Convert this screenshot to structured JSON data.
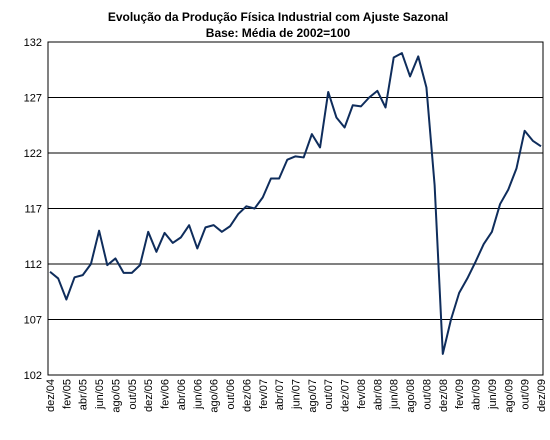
{
  "chart_data": {
    "type": "line",
    "title": "Evolução da Produção Física Industrial com Ajuste Sazonal",
    "subtitle": "Base: Média de 2002=100",
    "categories": [
      "dez/04",
      null,
      "fev/05",
      null,
      "abr/05",
      null,
      "jun/05",
      null,
      "ago/05",
      null,
      "out/05",
      null,
      "dez/05",
      null,
      "fev/06",
      null,
      "abr/06",
      null,
      "jun/06",
      null,
      "ago/06",
      null,
      "out/06",
      null,
      "dez/06",
      null,
      "fev/07",
      null,
      "abr/07",
      null,
      "jun/07",
      null,
      "ago/07",
      null,
      "out/07",
      null,
      "dez/07",
      null,
      "fev/08",
      null,
      "abr/08",
      null,
      "jun/08",
      null,
      "ago/08",
      null,
      "out/08",
      null,
      "dez/08",
      null,
      "fev/09",
      null,
      "abr/09",
      null,
      "jun/09",
      null,
      "ago/09",
      null,
      "out/09",
      null,
      "dez/09"
    ],
    "values": [
      111.3,
      110.7,
      108.8,
      110.8,
      111.0,
      112.0,
      115.0,
      111.9,
      112.5,
      111.2,
      111.2,
      111.9,
      114.9,
      113.1,
      114.8,
      113.9,
      114.4,
      115.5,
      113.4,
      115.3,
      115.5,
      114.9,
      115.4,
      116.5,
      117.2,
      117.0,
      118.0,
      119.7,
      119.7,
      121.4,
      121.7,
      121.6,
      123.7,
      122.5,
      127.5,
      125.2,
      124.3,
      126.3,
      126.2,
      127.0,
      127.6,
      126.1,
      130.6,
      131.0,
      128.9,
      130.7,
      127.9,
      119.1,
      103.9,
      107.0,
      109.4,
      110.7,
      112.2,
      113.8,
      114.9,
      117.4,
      118.7,
      120.6,
      124.0,
      123.1,
      122.6
    ],
    "color": "#0f2d5c",
    "ylim": [
      102,
      132
    ],
    "yticks": [
      102,
      107,
      112,
      117,
      122,
      127,
      132
    ],
    "grid": true
  }
}
